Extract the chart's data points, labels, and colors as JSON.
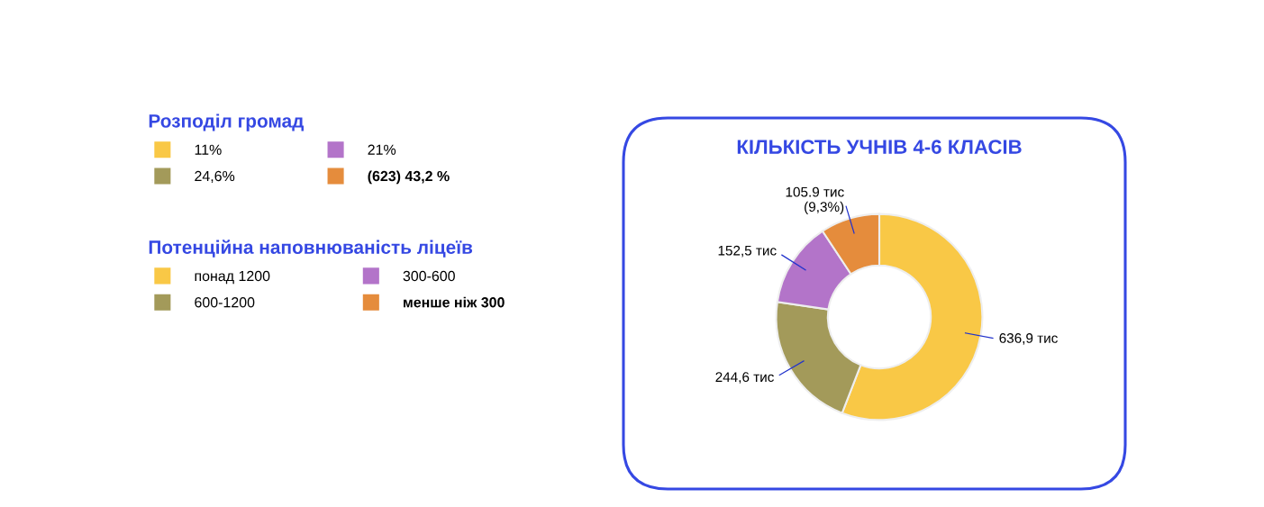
{
  "chart_data": [
    {
      "type": "other",
      "title": "Розподіл громад",
      "categories": [
        "11%",
        "24,6%",
        "21%",
        "(623) 43,2 %"
      ],
      "colors": [
        "#f9c846",
        "#a39a5a",
        "#b374c9",
        "#e58c3c"
      ]
    },
    {
      "type": "donut",
      "title": "КІЛЬКІСТЬ УЧНІВ 4-6 КЛАСІВ",
      "legend_title": "Потенційна наповнюваність ліцеїв",
      "legend": "left",
      "categories": [
        "понад 1200",
        "600-1200",
        "300-600",
        "менше ніж 300"
      ],
      "values": [
        636.9,
        244.6,
        152.5,
        105.9
      ],
      "colors": [
        "#f9c846",
        "#a39a5a",
        "#b374c9",
        "#e58c3c"
      ],
      "value_labels": [
        "636,9 тис",
        "244,6 тис",
        "152,5 тис",
        "105.9 тис\n(9,3%)"
      ]
    }
  ]
}
